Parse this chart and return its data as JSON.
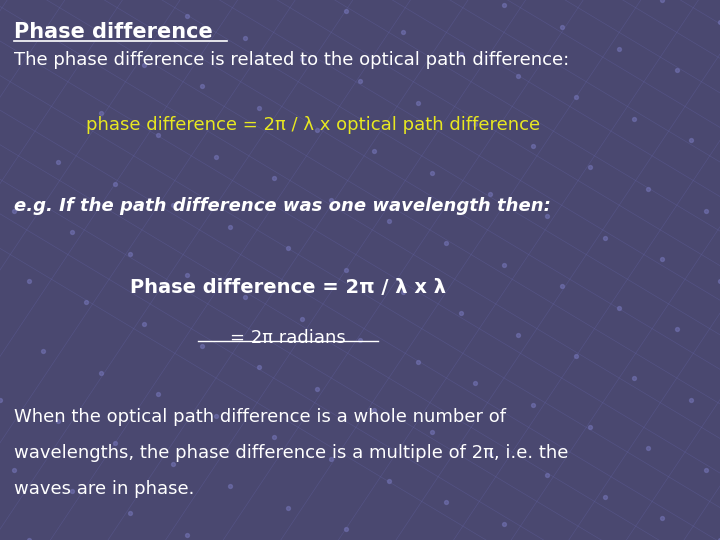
{
  "title": "Phase difference",
  "subtitle": "The phase difference is related to the optical path difference:",
  "formula_yellow": "phase difference = 2π / λ x optical path difference",
  "eg_text": "e.g. If the path difference was one wavelength then:",
  "phase_formula": "Phase difference = 2π / λ x λ",
  "equals_radians": "= 2π radians",
  "bottom_text_line1": "When the optical path difference is a whole number of",
  "bottom_text_line2": "wavelengths, the phase difference is a multiple of 2π, i.e. the",
  "bottom_text_line3": "waves are in phase.",
  "bg_color": "#4a4870",
  "grid_line_color": "#6666aa",
  "dot_color": "#7777bb",
  "text_color_white": "#ffffff",
  "text_color_yellow": "#e8e820",
  "figsize": [
    7.2,
    5.4
  ],
  "dpi": 100
}
